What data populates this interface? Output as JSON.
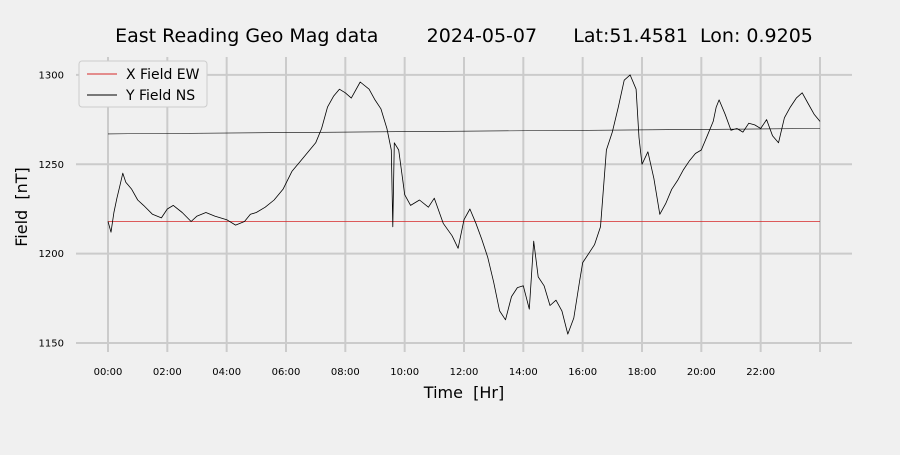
{
  "chart_data": {
    "type": "line",
    "title": "East Reading Geo Mag data        2024-05-07      Lat:51.4581  Lon: 0.9205",
    "xlabel": "Time  [Hr]",
    "ylabel": "Field  [nT]",
    "xlim": [
      0,
      24
    ],
    "ylim": [
      1145,
      1310
    ],
    "x_ticks": [
      0,
      2,
      4,
      6,
      8,
      10,
      12,
      14,
      16,
      18,
      20,
      22
    ],
    "x_tick_labels": [
      "00:00",
      "02:00",
      "04:00",
      "06:00",
      "08:00",
      "10:00",
      "12:00",
      "14:00",
      "16:00",
      "18:00",
      "20:00",
      "22:00"
    ],
    "x_grid_extra": [
      24
    ],
    "y_ticks": [
      1150,
      1200,
      1250,
      1300
    ],
    "y_tick_labels": [
      "1150",
      "1200",
      "1250",
      "1300"
    ],
    "grid": true,
    "legend": {
      "position": "top-left"
    },
    "colors": {
      "background": "#f0f0f0",
      "grid": "#cbcbcb",
      "x_series": "#d62728",
      "y_series": "#000000"
    },
    "series": [
      {
        "name": "X Field EW",
        "color": "#d62728",
        "x": [
          0,
          4,
          8,
          12,
          16,
          20,
          24
        ],
        "y": [
          1218,
          1218,
          1218,
          1218,
          1218,
          1218,
          1218
        ]
      },
      {
        "name": "Y Field NS",
        "color": "#000000",
        "x": [
          0,
          0.1,
          0.2,
          0.3,
          0.4,
          0.5,
          0.6,
          0.8,
          1.0,
          1.2,
          1.5,
          1.8,
          2.0,
          2.2,
          2.5,
          2.8,
          3.0,
          3.3,
          3.6,
          4.0,
          4.3,
          4.6,
          4.8,
          5.0,
          5.3,
          5.6,
          5.9,
          6.2,
          6.5,
          6.8,
          7.0,
          7.2,
          7.4,
          7.6,
          7.8,
          8.0,
          8.2,
          8.5,
          8.8,
          9.0,
          9.2,
          9.4,
          9.55,
          9.6,
          9.65,
          9.8,
          10.0,
          10.2,
          10.5,
          10.8,
          11.0,
          11.3,
          11.6,
          11.8,
          12.0,
          12.2,
          12.4,
          12.6,
          12.8,
          13.0,
          13.2,
          13.4,
          13.6,
          13.8,
          14.0,
          14.2,
          14.35,
          14.5,
          14.7,
          14.9,
          15.1,
          15.3,
          15.5,
          15.7,
          15.9,
          16.0,
          16.2,
          16.4,
          16.6,
          16.8,
          17.0,
          17.2,
          17.4,
          17.6,
          17.8,
          17.9,
          18.0,
          18.2,
          18.4,
          18.6,
          18.8,
          19.0,
          19.2,
          19.4,
          19.6,
          19.8,
          20.0,
          20.2,
          20.4,
          20.5,
          20.6,
          20.8,
          21.0,
          21.2,
          21.4,
          21.6,
          21.8,
          22.0,
          22.2,
          22.4,
          22.6,
          22.8,
          23.0,
          23.2,
          23.4,
          23.6,
          23.8,
          24.0
        ],
        "y": [
          1218,
          1212,
          1223,
          1231,
          1238,
          1245,
          1240,
          1236,
          1230,
          1227,
          1222,
          1220,
          1225,
          1227,
          1223,
          1218,
          1221,
          1223,
          1221,
          1219,
          1216,
          1218,
          1222,
          1223,
          1226,
          1230,
          1236,
          1246,
          1252,
          1258,
          1262,
          1270,
          1282,
          1288,
          1292,
          1290,
          1287,
          1296,
          1292,
          1286,
          1281,
          1270,
          1258,
          1215,
          1262,
          1258,
          1233,
          1227,
          1230,
          1226,
          1231,
          1217,
          1210,
          1203,
          1219,
          1225,
          1217,
          1208,
          1198,
          1184,
          1168,
          1163,
          1176,
          1181,
          1182,
          1169,
          1207,
          1187,
          1182,
          1171,
          1174,
          1168,
          1155,
          1164,
          1185,
          1195,
          1200,
          1205,
          1215,
          1258,
          1268,
          1282,
          1297,
          1300,
          1292,
          1265,
          1250,
          1257,
          1242,
          1222,
          1228,
          1236,
          1241,
          1247,
          1252,
          1256,
          1258,
          1266,
          1274,
          1282,
          1286,
          1278,
          1269,
          1270,
          1268,
          1273,
          1272,
          1270,
          1275,
          1266,
          1262,
          1276,
          1282,
          1287,
          1290,
          1284,
          1278,
          1274
        ]
      },
      {
        "name": "",
        "color": "#000000",
        "x": [
          0,
          24
        ],
        "y": [
          1267,
          1270
        ]
      }
    ]
  }
}
